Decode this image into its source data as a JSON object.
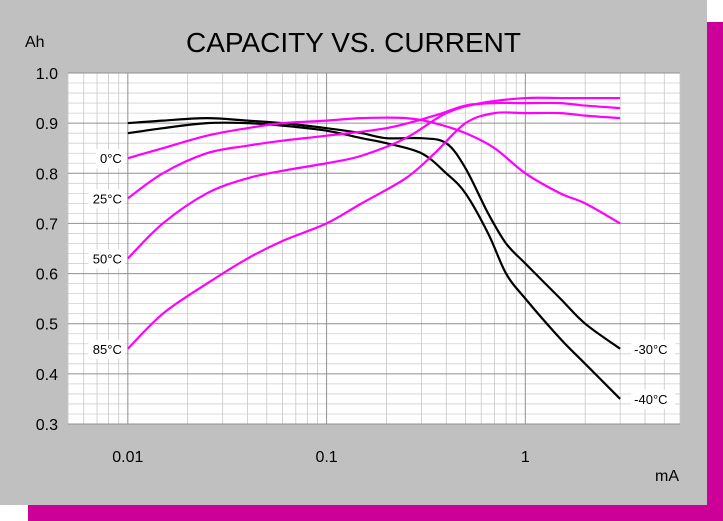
{
  "chart_data": {
    "type": "line",
    "title": "CAPACITY VS. CURRENT",
    "xlabel": "mA",
    "ylabel": "Ah",
    "x_scale": "log",
    "xlim": [
      0.005,
      6
    ],
    "ylim": [
      0.3,
      1.0
    ],
    "x_ticks": [
      0.01,
      0.1,
      1
    ],
    "x_tick_labels": [
      "0.01",
      "0.1",
      "1"
    ],
    "y_ticks": [
      0.3,
      0.4,
      0.5,
      0.6,
      0.7,
      0.8,
      0.9,
      1.0
    ],
    "y_tick_labels": [
      "0.3",
      "0.4",
      "0.5",
      "0.6",
      "0.7",
      "0.8",
      "0.9",
      "1.0"
    ],
    "grid": true,
    "series": [
      {
        "name": "-30°C",
        "color": "#000000",
        "label_side": "right",
        "points": [
          [
            0.01,
            0.9
          ],
          [
            0.015,
            0.905
          ],
          [
            0.025,
            0.91
          ],
          [
            0.04,
            0.905
          ],
          [
            0.06,
            0.9
          ],
          [
            0.1,
            0.89
          ],
          [
            0.15,
            0.88
          ],
          [
            0.2,
            0.87
          ],
          [
            0.3,
            0.87
          ],
          [
            0.4,
            0.86
          ],
          [
            0.5,
            0.81
          ],
          [
            0.65,
            0.72
          ],
          [
            0.8,
            0.66
          ],
          [
            1.0,
            0.62
          ],
          [
            1.5,
            0.55
          ],
          [
            2.0,
            0.5
          ],
          [
            3.0,
            0.45
          ]
        ]
      },
      {
        "name": "-40°C",
        "color": "#000000",
        "label_side": "right",
        "points": [
          [
            0.01,
            0.88
          ],
          [
            0.015,
            0.89
          ],
          [
            0.025,
            0.9
          ],
          [
            0.04,
            0.9
          ],
          [
            0.06,
            0.895
          ],
          [
            0.1,
            0.885
          ],
          [
            0.15,
            0.87
          ],
          [
            0.2,
            0.86
          ],
          [
            0.3,
            0.84
          ],
          [
            0.4,
            0.8
          ],
          [
            0.5,
            0.76
          ],
          [
            0.65,
            0.68
          ],
          [
            0.8,
            0.6
          ],
          [
            1.0,
            0.55
          ],
          [
            1.5,
            0.47
          ],
          [
            2.0,
            0.42
          ],
          [
            3.0,
            0.35
          ]
        ]
      },
      {
        "name": "0°C",
        "color": "#ff00ff",
        "label_side": "left",
        "points": [
          [
            0.01,
            0.83
          ],
          [
            0.015,
            0.85
          ],
          [
            0.025,
            0.875
          ],
          [
            0.04,
            0.89
          ],
          [
            0.06,
            0.9
          ],
          [
            0.1,
            0.905
          ],
          [
            0.15,
            0.91
          ],
          [
            0.25,
            0.91
          ],
          [
            0.35,
            0.9
          ],
          [
            0.5,
            0.88
          ],
          [
            0.7,
            0.85
          ],
          [
            1.0,
            0.8
          ],
          [
            1.5,
            0.76
          ],
          [
            2.0,
            0.74
          ],
          [
            3.0,
            0.7
          ]
        ]
      },
      {
        "name": "25°C",
        "color": "#ff00ff",
        "label_side": "left",
        "points": [
          [
            0.01,
            0.75
          ],
          [
            0.015,
            0.8
          ],
          [
            0.025,
            0.84
          ],
          [
            0.04,
            0.855
          ],
          [
            0.06,
            0.865
          ],
          [
            0.1,
            0.875
          ],
          [
            0.2,
            0.89
          ],
          [
            0.35,
            0.915
          ],
          [
            0.5,
            0.935
          ],
          [
            0.7,
            0.94
          ],
          [
            1.0,
            0.94
          ],
          [
            1.5,
            0.94
          ],
          [
            2.0,
            0.935
          ],
          [
            3.0,
            0.93
          ]
        ]
      },
      {
        "name": "50°C",
        "color": "#ff00ff",
        "label_side": "left",
        "points": [
          [
            0.01,
            0.63
          ],
          [
            0.015,
            0.7
          ],
          [
            0.025,
            0.76
          ],
          [
            0.04,
            0.79
          ],
          [
            0.06,
            0.805
          ],
          [
            0.1,
            0.82
          ],
          [
            0.15,
            0.835
          ],
          [
            0.25,
            0.87
          ],
          [
            0.4,
            0.92
          ],
          [
            0.6,
            0.94
          ],
          [
            1.0,
            0.95
          ],
          [
            1.5,
            0.95
          ],
          [
            2.0,
            0.95
          ],
          [
            3.0,
            0.95
          ]
        ]
      },
      {
        "name": "85°C",
        "color": "#ff00ff",
        "label_side": "left",
        "points": [
          [
            0.01,
            0.45
          ],
          [
            0.015,
            0.52
          ],
          [
            0.025,
            0.58
          ],
          [
            0.04,
            0.63
          ],
          [
            0.06,
            0.665
          ],
          [
            0.1,
            0.7
          ],
          [
            0.15,
            0.74
          ],
          [
            0.25,
            0.79
          ],
          [
            0.35,
            0.84
          ],
          [
            0.5,
            0.9
          ],
          [
            0.7,
            0.92
          ],
          [
            1.0,
            0.92
          ],
          [
            1.5,
            0.92
          ],
          [
            2.0,
            0.915
          ],
          [
            3.0,
            0.91
          ]
        ]
      }
    ]
  }
}
